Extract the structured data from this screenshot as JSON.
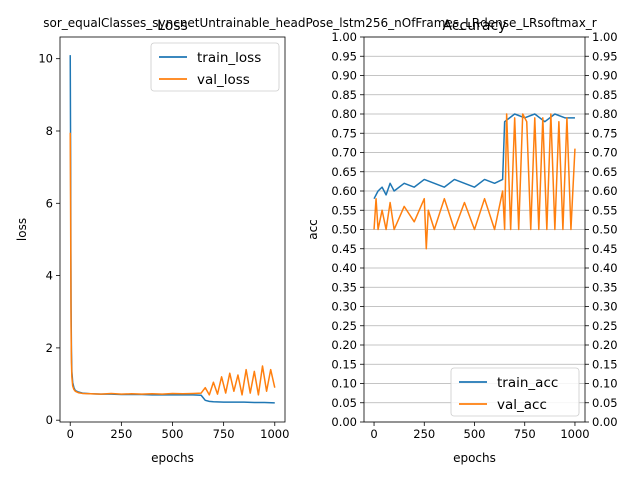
{
  "figure": {
    "suptitle": "sor_equalClasses_syncnetUntrainable_headPose_lstm256_nOfFrames_LRdense_LRsoftmax_r"
  },
  "chart_data": [
    {
      "type": "line",
      "title": "Loss",
      "xlabel": "epochs",
      "ylabel": "loss",
      "xlim": [
        -50,
        1050
      ],
      "ylim": [
        -0.05,
        10.6
      ],
      "xticks": [
        0,
        250,
        500,
        750,
        1000
      ],
      "yticks": [
        0,
        2,
        4,
        6,
        8,
        10
      ],
      "grid": false,
      "legend_position": "top-right",
      "series": [
        {
          "name": "train_loss",
          "color": "#1f77b4",
          "points": [
            [
              0,
              10.1
            ],
            [
              2,
              7.2
            ],
            [
              4,
              3.2
            ],
            [
              6,
              1.9
            ],
            [
              8,
              1.35
            ],
            [
              12,
              1.05
            ],
            [
              18,
              0.9
            ],
            [
              25,
              0.82
            ],
            [
              40,
              0.78
            ],
            [
              60,
              0.75
            ],
            [
              100,
              0.73
            ],
            [
              150,
              0.72
            ],
            [
              200,
              0.72
            ],
            [
              250,
              0.71
            ],
            [
              300,
              0.71
            ],
            [
              350,
              0.71
            ],
            [
              400,
              0.7
            ],
            [
              450,
              0.7
            ],
            [
              500,
              0.7
            ],
            [
              550,
              0.7
            ],
            [
              600,
              0.7
            ],
            [
              640,
              0.69
            ],
            [
              650,
              0.62
            ],
            [
              660,
              0.55
            ],
            [
              680,
              0.52
            ],
            [
              700,
              0.51
            ],
            [
              750,
              0.5
            ],
            [
              800,
              0.5
            ],
            [
              850,
              0.5
            ],
            [
              900,
              0.49
            ],
            [
              950,
              0.49
            ],
            [
              1000,
              0.48
            ]
          ]
        },
        {
          "name": "val_loss",
          "color": "#ff7f0e",
          "points": [
            [
              0,
              7.95
            ],
            [
              2,
              5.5
            ],
            [
              4,
              2.6
            ],
            [
              6,
              1.6
            ],
            [
              8,
              1.2
            ],
            [
              12,
              0.95
            ],
            [
              18,
              0.85
            ],
            [
              25,
              0.8
            ],
            [
              40,
              0.76
            ],
            [
              60,
              0.74
            ],
            [
              100,
              0.73
            ],
            [
              150,
              0.72
            ],
            [
              200,
              0.74
            ],
            [
              250,
              0.72
            ],
            [
              300,
              0.73
            ],
            [
              350,
              0.72
            ],
            [
              400,
              0.73
            ],
            [
              450,
              0.72
            ],
            [
              500,
              0.74
            ],
            [
              550,
              0.73
            ],
            [
              600,
              0.74
            ],
            [
              640,
              0.75
            ],
            [
              660,
              0.9
            ],
            [
              680,
              0.7
            ],
            [
              700,
              1.05
            ],
            [
              720,
              0.72
            ],
            [
              740,
              1.2
            ],
            [
              760,
              0.75
            ],
            [
              780,
              1.3
            ],
            [
              800,
              0.8
            ],
            [
              820,
              1.25
            ],
            [
              840,
              0.7
            ],
            [
              860,
              1.4
            ],
            [
              880,
              0.75
            ],
            [
              900,
              1.35
            ],
            [
              920,
              0.7
            ],
            [
              940,
              1.5
            ],
            [
              960,
              0.8
            ],
            [
              980,
              1.4
            ],
            [
              1000,
              0.9
            ]
          ]
        }
      ]
    },
    {
      "type": "line",
      "title": "Accuracy",
      "xlabel": "epochs",
      "ylabel": "acc",
      "xlim": [
        -50,
        1050
      ],
      "ylim": [
        0,
        1
      ],
      "xticks": [
        0,
        250,
        500,
        750,
        1000
      ],
      "yticks": [
        "0.00",
        "0.05",
        "0.10",
        "0.15",
        "0.20",
        "0.25",
        "0.30",
        "0.35",
        "0.40",
        "0.45",
        "0.50",
        "0.55",
        "0.60",
        "0.65",
        "0.70",
        "0.75",
        "0.80",
        "0.85",
        "0.90",
        "0.95",
        "1.00"
      ],
      "grid": true,
      "secondary_yaxis": true,
      "legend_position": "bottom-right",
      "series": [
        {
          "name": "train_acc",
          "color": "#1f77b4",
          "points": [
            [
              0,
              0.58
            ],
            [
              20,
              0.6
            ],
            [
              40,
              0.61
            ],
            [
              60,
              0.59
            ],
            [
              80,
              0.62
            ],
            [
              100,
              0.6
            ],
            [
              150,
              0.62
            ],
            [
              200,
              0.61
            ],
            [
              250,
              0.63
            ],
            [
              300,
              0.62
            ],
            [
              350,
              0.61
            ],
            [
              400,
              0.63
            ],
            [
              450,
              0.62
            ],
            [
              500,
              0.61
            ],
            [
              550,
              0.63
            ],
            [
              600,
              0.62
            ],
            [
              640,
              0.63
            ],
            [
              650,
              0.78
            ],
            [
              700,
              0.8
            ],
            [
              750,
              0.79
            ],
            [
              800,
              0.8
            ],
            [
              850,
              0.78
            ],
            [
              900,
              0.8
            ],
            [
              950,
              0.79
            ],
            [
              1000,
              0.79
            ]
          ]
        },
        {
          "name": "val_acc",
          "color": "#ff7f0e",
          "points": [
            [
              0,
              0.5
            ],
            [
              10,
              0.58
            ],
            [
              20,
              0.5
            ],
            [
              40,
              0.55
            ],
            [
              60,
              0.5
            ],
            [
              80,
              0.57
            ],
            [
              100,
              0.5
            ],
            [
              150,
              0.56
            ],
            [
              200,
              0.52
            ],
            [
              250,
              0.58
            ],
            [
              260,
              0.45
            ],
            [
              270,
              0.55
            ],
            [
              300,
              0.5
            ],
            [
              350,
              0.58
            ],
            [
              400,
              0.5
            ],
            [
              450,
              0.57
            ],
            [
              500,
              0.5
            ],
            [
              550,
              0.58
            ],
            [
              600,
              0.5
            ],
            [
              640,
              0.6
            ],
            [
              650,
              0.5
            ],
            [
              660,
              0.8
            ],
            [
              680,
              0.5
            ],
            [
              700,
              0.79
            ],
            [
              720,
              0.5
            ],
            [
              740,
              0.8
            ],
            [
              760,
              0.78
            ],
            [
              780,
              0.5
            ],
            [
              800,
              0.79
            ],
            [
              820,
              0.5
            ],
            [
              840,
              0.79
            ],
            [
              860,
              0.5
            ],
            [
              880,
              0.8
            ],
            [
              900,
              0.5
            ],
            [
              920,
              0.78
            ],
            [
              940,
              0.5
            ],
            [
              960,
              0.79
            ],
            [
              980,
              0.5
            ],
            [
              1000,
              0.71
            ]
          ]
        }
      ]
    }
  ]
}
